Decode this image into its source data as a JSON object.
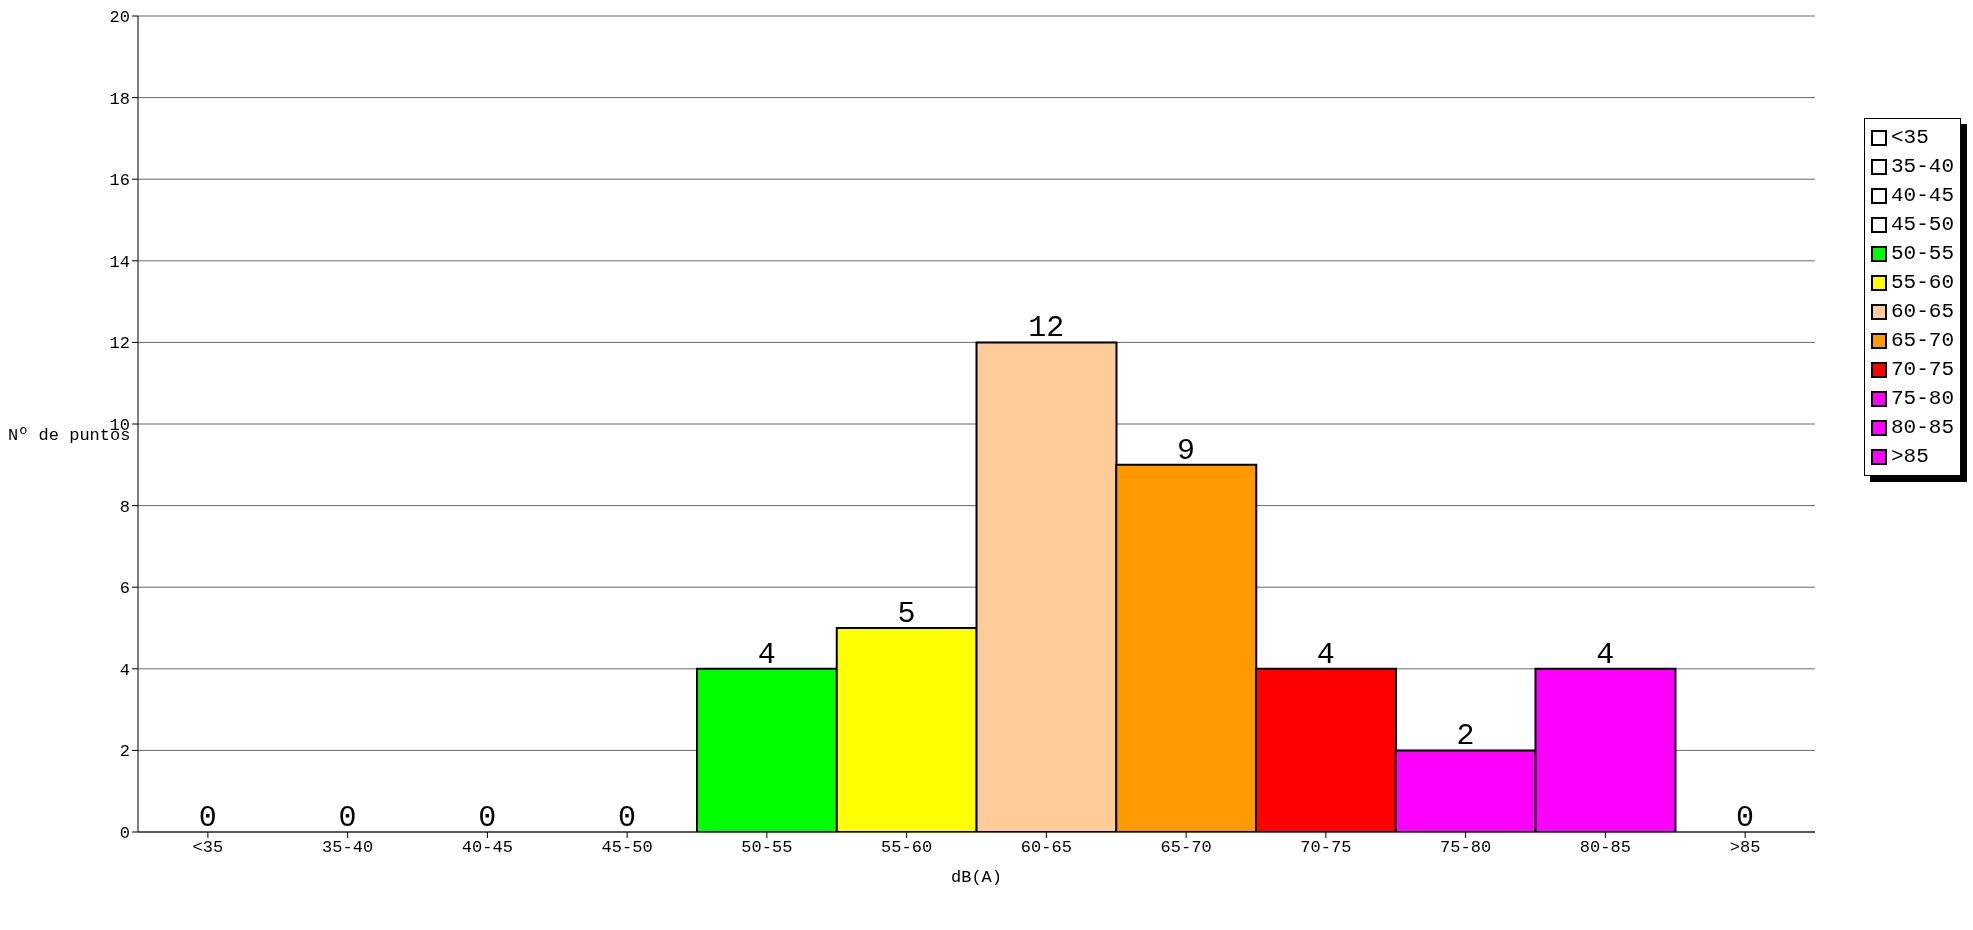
{
  "chart_data": {
    "type": "bar",
    "xlabel": "dB(A)",
    "ylabel": "Nº de puntos",
    "categories": [
      "<35",
      "35-40",
      "40-45",
      "45-50",
      "50-55",
      "55-60",
      "60-65",
      "65-70",
      "70-75",
      "75-80",
      "80-85",
      ">85"
    ],
    "series": [
      {
        "name": "<35",
        "color": "#ffffff",
        "values": [
          0,
          null,
          null,
          null,
          null,
          null,
          null,
          null,
          null,
          null,
          null,
          null
        ]
      },
      {
        "name": "35-40",
        "color": "#ffffff",
        "values": [
          null,
          0,
          null,
          null,
          null,
          null,
          null,
          null,
          null,
          null,
          null,
          null
        ]
      },
      {
        "name": "40-45",
        "color": "#ffffff",
        "values": [
          null,
          null,
          0,
          null,
          null,
          null,
          null,
          null,
          null,
          null,
          null,
          null
        ]
      },
      {
        "name": "45-50",
        "color": "#ffffff",
        "values": [
          null,
          null,
          null,
          0,
          null,
          null,
          null,
          null,
          null,
          null,
          null,
          null
        ]
      },
      {
        "name": "50-55",
        "color": "#00ff00",
        "values": [
          null,
          null,
          null,
          null,
          4,
          null,
          null,
          null,
          null,
          null,
          null,
          null
        ]
      },
      {
        "name": "55-60",
        "color": "#ffff00",
        "values": [
          null,
          null,
          null,
          null,
          null,
          5,
          null,
          null,
          null,
          null,
          null,
          null
        ]
      },
      {
        "name": "60-65",
        "color": "#ffcc99",
        "values": [
          null,
          null,
          null,
          null,
          null,
          null,
          12,
          null,
          null,
          null,
          null,
          null
        ]
      },
      {
        "name": "65-70",
        "color": "#ff9900",
        "values": [
          null,
          null,
          null,
          null,
          null,
          null,
          null,
          9,
          null,
          null,
          null,
          null
        ]
      },
      {
        "name": "70-75",
        "color": "#ff0000",
        "values": [
          null,
          null,
          null,
          null,
          null,
          null,
          null,
          null,
          4,
          null,
          null,
          null
        ]
      },
      {
        "name": "75-80",
        "color": "#ff00ff",
        "values": [
          null,
          null,
          null,
          null,
          null,
          null,
          null,
          null,
          null,
          2,
          null,
          null
        ]
      },
      {
        "name": "80-85",
        "color": "#ff00ff",
        "values": [
          null,
          null,
          null,
          null,
          null,
          null,
          null,
          null,
          null,
          null,
          4,
          null
        ]
      },
      {
        "name": ">85",
        "color": "#ff00ff",
        "values": [
          null,
          null,
          null,
          null,
          null,
          null,
          null,
          null,
          null,
          null,
          null,
          0
        ]
      }
    ],
    "stacked": true,
    "ylim": [
      0,
      20
    ],
    "yticks": [
      0,
      2,
      4,
      6,
      8,
      10,
      12,
      14,
      16,
      18,
      20
    ],
    "grid": "y",
    "legend": "right",
    "data_labels": true
  }
}
